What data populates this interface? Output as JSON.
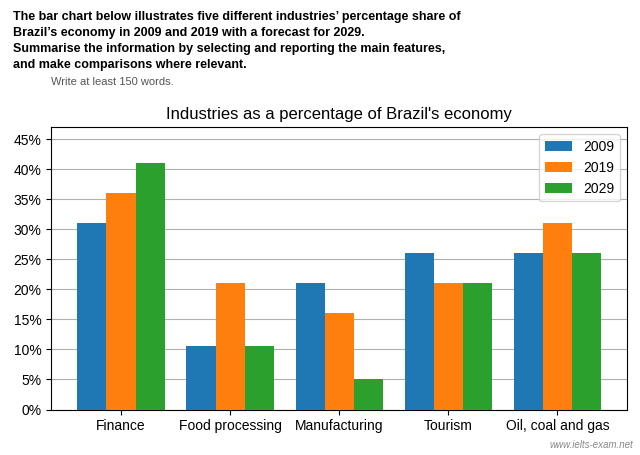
{
  "chart_data": {
    "type": "bar",
    "title": "Industries as a percentage of Brazil's economy",
    "annotations": [
      "The bar chart below illustrates five different industries’ percentage share of",
      "Brazil’s economy in 2009 and 2019 with a forecast for 2029.",
      "Summarise the information by selecting and reporting the main features,",
      "and make comparisons where relevant.",
      "Write at least 150 words.",
      "www.ielts-exam.net"
    ],
    "categories": [
      "Finance",
      "Food processing",
      "Manufacturing",
      "Tourism",
      "Oil, coal and gas"
    ],
    "series": [
      {
        "name": "2009",
        "values": [
          31,
          10.5,
          21,
          26,
          26
        ]
      },
      {
        "name": "2019",
        "values": [
          36,
          21,
          16,
          21,
          31
        ]
      },
      {
        "name": "2029",
        "values": [
          41,
          10.5,
          5,
          21,
          26
        ]
      }
    ],
    "ylim": [
      0,
      47
    ],
    "yticks": [
      {
        "value": 0,
        "label": "0%"
      },
      {
        "value": 5,
        "label": "5%"
      },
      {
        "value": 10,
        "label": "10%"
      },
      {
        "value": 15,
        "label": "15%"
      },
      {
        "value": 20,
        "label": "20%"
      },
      {
        "value": 25,
        "label": "25%"
      },
      {
        "value": 30,
        "label": "30%"
      },
      {
        "value": 35,
        "label": "35%"
      },
      {
        "value": 40,
        "label": "40%"
      },
      {
        "value": 45,
        "label": "45%"
      }
    ],
    "grid": true,
    "legend": "upper right"
  }
}
